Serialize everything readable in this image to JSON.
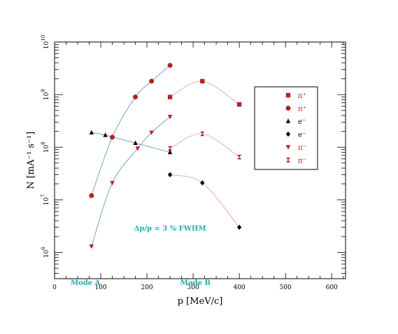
{
  "chart_data": {
    "type": "scatter",
    "xlabel": "p [MeV/c]",
    "ylabel": "N [mA⁻¹ s⁻¹]",
    "xlim": [
      0,
      630
    ],
    "ylim_log10": [
      5.5,
      10
    ],
    "yscale": "log",
    "x_ticks": [
      "0",
      "100",
      "200",
      "300",
      "400",
      "500",
      "600"
    ],
    "y_ticks": [
      {
        "base": "10",
        "exp": "6"
      },
      {
        "base": "10",
        "exp": "7"
      },
      {
        "base": "10",
        "exp": "8"
      },
      {
        "base": "10",
        "exp": "9"
      },
      {
        "base": "10",
        "exp": "10"
      }
    ],
    "annotations": {
      "resolution": "Δp/p = 3 % FWHM",
      "mode_a": "Mode A",
      "mode_b": "Mode B"
    },
    "series": [
      {
        "name": "π⁺",
        "marker": "square",
        "color": "#b22222",
        "curve_color": "#e8a0b0",
        "x": [
          250,
          320,
          400
        ],
        "y": [
          900000000.0,
          1800000000.0,
          650000000.0
        ]
      },
      {
        "name": "π⁺",
        "marker": "circle",
        "color": "#b22222",
        "curve_color": "#6699cc",
        "x": [
          80,
          125,
          175,
          210,
          250
        ],
        "y": [
          12000000.0,
          155000000.0,
          900000000.0,
          1800000000.0,
          3600000000.0
        ]
      },
      {
        "name": "e⁻",
        "marker": "triangle-up",
        "color": "#000000",
        "curve_color": "#6699cc",
        "x": [
          80,
          110,
          175,
          250
        ],
        "y": [
          190000000.0,
          170000000.0,
          120000000.0,
          80000000.0
        ]
      },
      {
        "name": "e⁻",
        "marker": "diamond",
        "color": "#000000",
        "curve_color": "#e8a0b0",
        "x": [
          250,
          320,
          400
        ],
        "y": [
          30000000.0,
          21000000.0,
          3000000.0
        ]
      },
      {
        "name": "π⁻",
        "marker": "triangle-down",
        "color": "#b22222",
        "curve_color": "#6699cc",
        "x": [
          80,
          125,
          180,
          210,
          250
        ],
        "y": [
          1300000.0,
          21000000.0,
          95000000.0,
          190000000.0,
          380000000.0
        ]
      },
      {
        "name": "π⁻",
        "marker": "bowtie",
        "color": "#b22222",
        "curve_color": "#e8a0b0",
        "x": [
          250,
          320,
          400
        ],
        "y": [
          95000000.0,
          180000000.0,
          65000000.0
        ]
      }
    ],
    "legend": {
      "placement": "right"
    }
  }
}
